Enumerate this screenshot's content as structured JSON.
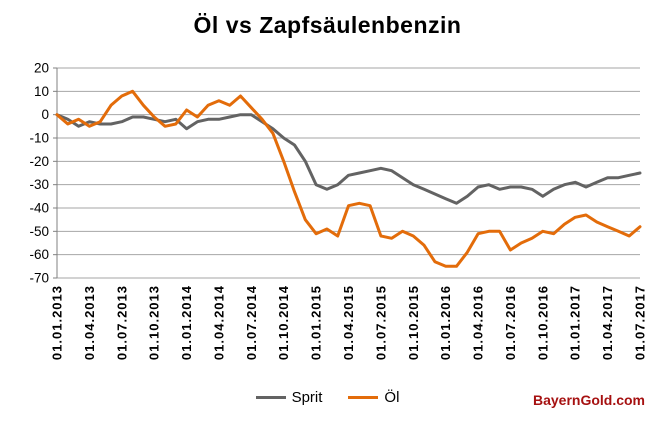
{
  "title": "Öl vs Zapfsäulenbenzin",
  "footer": {
    "brand": "BayernGold.com",
    "color": "#A61111"
  },
  "colors": {
    "gridline": "#A6A6A6",
    "axis": "#808080",
    "sprit": "#636363",
    "oel": "#E36C0A",
    "title_text": "#000000"
  },
  "chart_data": {
    "type": "line",
    "title": "Öl vs Zapfsäulenbenzin",
    "xlabel": "",
    "ylabel": "",
    "ylim": [
      -70,
      20
    ],
    "y_ticks": [
      20,
      10,
      0,
      -10,
      -20,
      -30,
      -40,
      -50,
      -60,
      -70
    ],
    "grid": true,
    "legend_position": "bottom",
    "x_note": "monthly data points Jan 2013 - Jul 2017, axis labeled every 3rd month",
    "x_tick_labels": [
      "01.01.2013",
      "01.04.2013",
      "01.07.2013",
      "01.10.2013",
      "01.01.2014",
      "01.04.2014",
      "01.07.2014",
      "01.10.2014",
      "01.01.2015",
      "01.04.2015",
      "01.07.2015",
      "01.10.2015",
      "01.01.2016",
      "01.04.2016",
      "01.07.2016",
      "01.10.2016",
      "01.01.2017",
      "01.04.2017",
      "01.07.2017"
    ],
    "series": [
      {
        "name": "Sprit",
        "color": "#636363",
        "values": [
          0,
          -2,
          -5,
          -3,
          -4,
          -4,
          -3,
          -1,
          -1,
          -2,
          -3,
          -2,
          -6,
          -3,
          -2,
          -2,
          -1,
          0,
          0,
          -3,
          -6,
          -10,
          -13,
          -20,
          -30,
          -32,
          -30,
          -26,
          -25,
          -24,
          -23,
          -24,
          -27,
          -30,
          -32,
          -34,
          -36,
          -38,
          -35,
          -31,
          -30,
          -32,
          -31,
          -31,
          -32,
          -35,
          -32,
          -30,
          -29,
          -31,
          -29,
          -27,
          -27,
          -26,
          -25
        ]
      },
      {
        "name": "Öl",
        "color": "#E36C0A",
        "values": [
          0,
          -4,
          -2,
          -5,
          -3,
          4,
          8,
          10,
          4,
          -1,
          -5,
          -4,
          2,
          -1,
          4,
          6,
          4,
          8,
          3,
          -2,
          -8,
          -20,
          -33,
          -45,
          -51,
          -49,
          -52,
          -39,
          -38,
          -39,
          -52,
          -53,
          -50,
          -52,
          -56,
          -63,
          -65,
          -65,
          -59,
          -51,
          -50,
          -50,
          -58,
          -55,
          -53,
          -50,
          -51,
          -47,
          -44,
          -43,
          -46,
          -48,
          -50,
          -52,
          -48
        ]
      }
    ]
  }
}
